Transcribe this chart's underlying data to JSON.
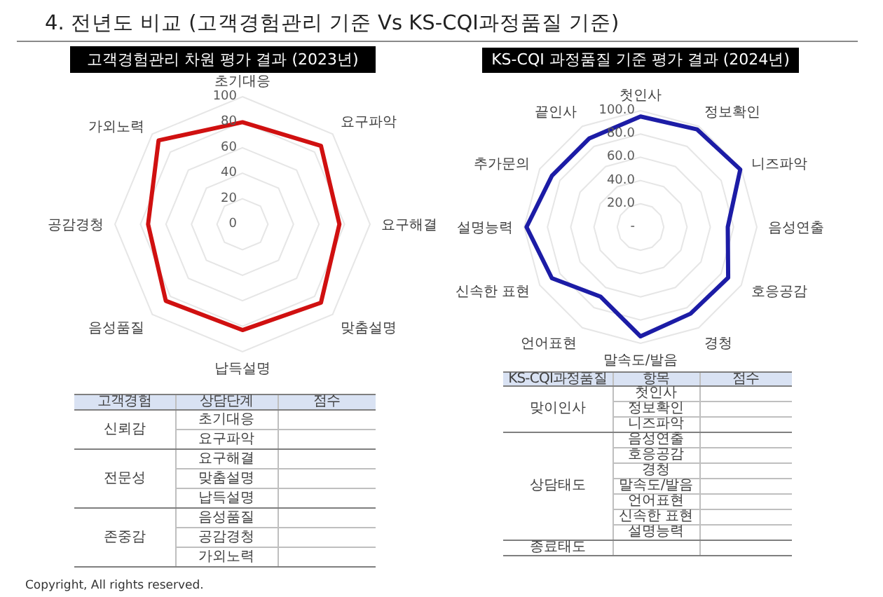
{
  "chart_data": [
    {
      "type": "other",
      "title": "4. 전년도 비교 (고객경험관리 기준 Vs KS-CQI과정품질 기준)",
      "annotations": [
        "Copyright, All rights reserved."
      ]
    },
    {
      "type": "radar",
      "title": "고객경험관리 차원 평가 결과 (2023년)",
      "categories": [
        "초기대응",
        "요구파악",
        "요구해결",
        "맞춤설명",
        "납득설명",
        "음성품질",
        "공감경청",
        "가외노력"
      ],
      "series": [
        {
          "color": "#d01010",
          "values": [
            80,
            87,
            76,
            87,
            83,
            85,
            74,
            93
          ]
        }
      ],
      "ylim": [
        0,
        100
      ],
      "yticks": [
        0,
        20,
        40,
        60,
        80,
        100
      ],
      "grid": true
    },
    {
      "type": "radar",
      "title": "KS-CQI 과정품질 기준 평가 결과 (2024년)",
      "categories": [
        "첫인사",
        "정보확인",
        "니즈파악",
        "음성연출",
        "호응공감",
        "경청",
        "말속도/발음",
        "언어표현",
        "신속한 표현",
        "설명능력",
        "추가문의",
        "끝인사"
      ],
      "series": [
        {
          "color": "#1c1ca6",
          "values": [
            95,
            97,
            99,
            75,
            87,
            86,
            94,
            69,
            88,
            98,
            88,
            88
          ]
        }
      ],
      "ylim": [
        0,
        100
      ],
      "yticks": [
        {
          "value": 0,
          "label": "-"
        },
        {
          "value": 20,
          "label": "20.0"
        },
        {
          "value": 40,
          "label": "40.0"
        },
        {
          "value": 60,
          "label": "60.0"
        },
        {
          "value": 80,
          "label": "80.0"
        },
        {
          "value": 100,
          "label": "100.0"
        }
      ],
      "grid": true
    },
    {
      "type": "other",
      "categories": [
        "고객경험",
        "상담단계",
        "점수"
      ],
      "cell_labels": [
        [
          "신뢰감",
          "초기대응",
          null
        ],
        [
          null,
          "요구파악",
          null
        ],
        [
          "전문성",
          "요구해결",
          null
        ],
        [
          null,
          "맞춤설명",
          null
        ],
        [
          null,
          "납득설명",
          null
        ],
        [
          "존중감",
          "음성품질",
          null
        ],
        [
          null,
          "공감경청",
          null
        ],
        [
          null,
          "가외노력",
          null
        ]
      ]
    },
    {
      "type": "other",
      "categories": [
        "KS-CQI과정품질",
        "항목",
        "점수"
      ],
      "cell_labels": [
        [
          "맞이인사",
          "첫인사",
          null
        ],
        [
          null,
          "정보확인",
          null
        ],
        [
          null,
          "니즈파악",
          null
        ],
        [
          "상담태도",
          "음성연출",
          null
        ],
        [
          null,
          "호응공감",
          null
        ],
        [
          null,
          "경청",
          null
        ],
        [
          null,
          "말속도/발음",
          null
        ],
        [
          null,
          "언어표현",
          null
        ],
        [
          null,
          "신속한 표현",
          null
        ],
        [
          null,
          "설명능력",
          null
        ],
        [
          "종료태도",
          null,
          null
        ]
      ]
    }
  ]
}
